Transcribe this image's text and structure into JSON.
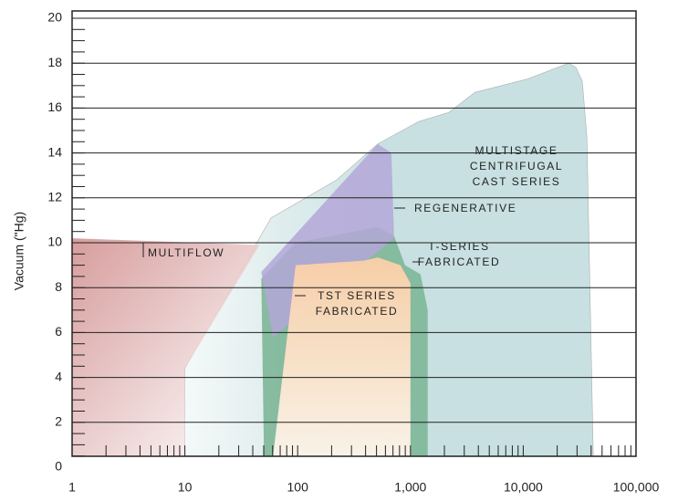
{
  "chart_data": {
    "type": "area",
    "y_label": "Vacuum (\"Hg)",
    "xscale": "log",
    "xlim": [
      1,
      100000
    ],
    "xticks": [
      1,
      10,
      100,
      {
        "value": 1000,
        "label": "1,000"
      },
      {
        "value": 10000,
        "label": "10,000"
      },
      {
        "value": 100000,
        "label": "100,000"
      }
    ],
    "ylim": [
      0,
      20
    ],
    "yticks": [
      0,
      2,
      4,
      6,
      8,
      10,
      12,
      14,
      16,
      18,
      20
    ],
    "grid": true,
    "series": [
      {
        "label": [
          "MULTISTAGE",
          "CENTRIFUGAL",
          "CAST SERIES"
        ],
        "color": "#c6dfe0",
        "x": [
          10,
          10,
          58,
          222,
          513,
          1183,
          2180,
          3740,
          11000,
          25300,
          29400,
          33400,
          36700,
          41800
        ],
        "y": [
          0.5,
          4.4,
          11.1,
          12.8,
          14.4,
          15.4,
          15.8,
          16.7,
          17.3,
          18,
          17.8,
          17.2,
          14.7,
          0.5
        ]
      },
      {
        "label": [
          "MULTIFLOW"
        ],
        "color": "#d59898",
        "x": [
          1,
          1,
          45.8,
          10,
          10
        ],
        "y": [
          0.5,
          10.2,
          9.9,
          4.4,
          0.5
        ]
      },
      {
        "label": [
          "T-SERIES",
          "FABRICATED"
        ],
        "color": "#82b89b",
        "x": [
          47.6,
          96,
          513,
          716,
          895,
          1227,
          1422,
          1422,
          50.3
        ],
        "y": [
          8.4,
          10,
          10.7,
          10.3,
          9,
          8.6,
          7,
          0.5,
          0.5
        ]
      },
      {
        "label": [
          "REGENERATIVE"
        ],
        "color": "#b4a7d8",
        "x": [
          47.6,
          513,
          677,
          716,
          60.5
        ],
        "y": [
          8.7,
          14.4,
          14,
          10.2,
          5.8
        ]
      },
      {
        "label": [
          "TST SERIES",
          "FABRICATED"
        ],
        "color": "#fbcfa6",
        "x": [
          60.5,
          96,
          388,
          513,
          815,
          1000,
          1000
        ],
        "y": [
          0.5,
          9,
          9.2,
          9.35,
          9,
          8.2,
          0.5
        ]
      }
    ]
  }
}
